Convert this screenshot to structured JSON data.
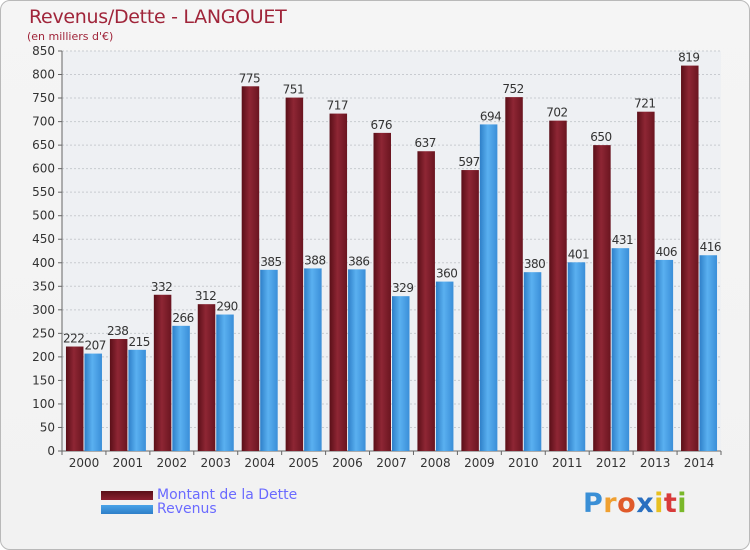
{
  "chart_data": {
    "type": "bar",
    "title": "Revenus/Dette - LANGOUET",
    "subtitle": "(en milliers d'€)",
    "categories": [
      "2000",
      "2001",
      "2002",
      "2003",
      "2004",
      "2005",
      "2006",
      "2007",
      "2008",
      "2009",
      "2010",
      "2011",
      "2012",
      "2013",
      "2014"
    ],
    "series": [
      {
        "name": "Montant de la Dette",
        "color": "#8b2030",
        "values": [
          222,
          238,
          332,
          312,
          775,
          751,
          717,
          676,
          637,
          597,
          752,
          702,
          650,
          721,
          819
        ]
      },
      {
        "name": "Revenus",
        "color": "#4aa3e8",
        "values": [
          207,
          215,
          266,
          290,
          385,
          388,
          386,
          329,
          360,
          694,
          380,
          401,
          431,
          406,
          416
        ]
      }
    ],
    "ylim": [
      0,
      850
    ],
    "yticks": [
      0,
      50,
      100,
      150,
      200,
      250,
      300,
      350,
      400,
      450,
      500,
      550,
      600,
      650,
      700,
      750,
      800,
      850
    ],
    "grid": true,
    "legend_position": "bottom-left"
  },
  "branding": {
    "letters": [
      "P",
      "r",
      "o",
      "x",
      "i",
      "t",
      "i"
    ],
    "colors": [
      "#3a8fd6",
      "#f0a030",
      "#e05a2a",
      "#2a6fc0",
      "#e8c020",
      "#d83a3a",
      "#7ab82a"
    ]
  }
}
